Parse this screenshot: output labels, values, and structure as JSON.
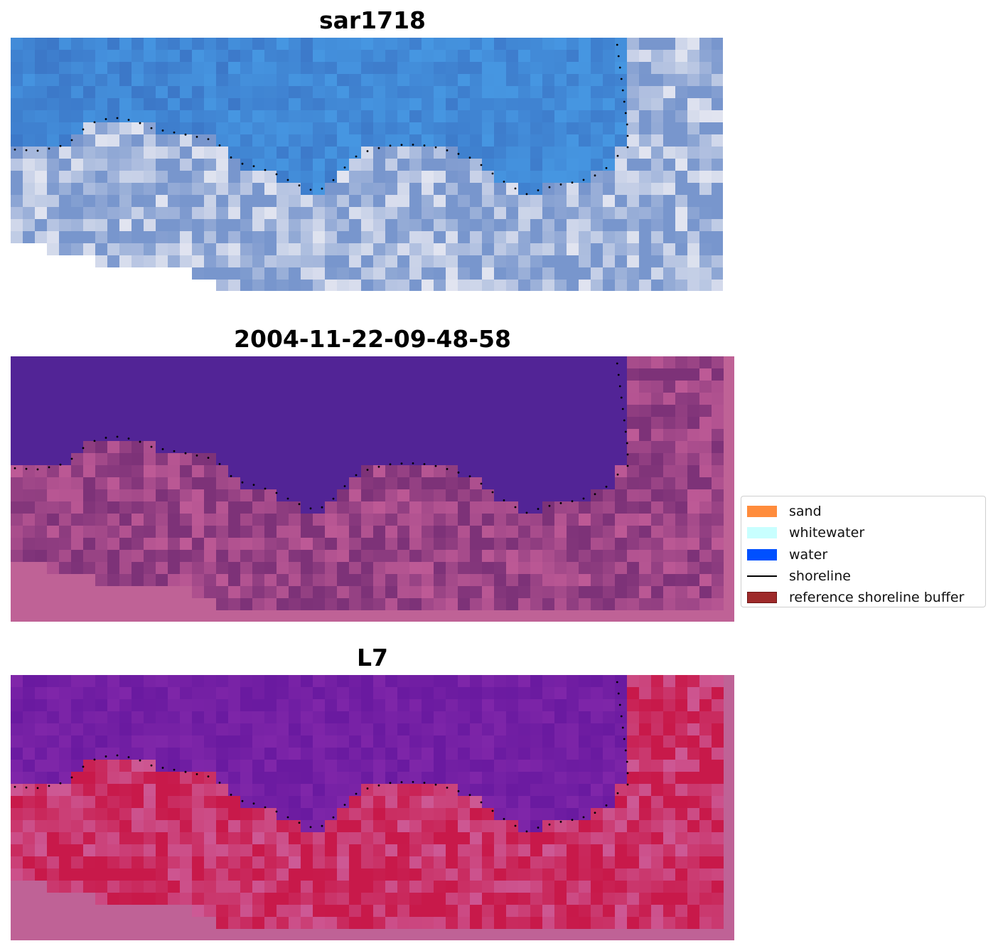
{
  "panels": [
    {
      "title": "sar1718",
      "style": "rgb"
    },
    {
      "title": "2004-11-22-09-48-58",
      "style": "classified"
    },
    {
      "title": "L7",
      "style": "index"
    }
  ],
  "legend": {
    "items": [
      {
        "label": "sand",
        "kind": "patch",
        "color": "#ff8c3c"
      },
      {
        "label": "whitewater",
        "kind": "patch",
        "color": "#c8ffff"
      },
      {
        "label": "water",
        "kind": "patch",
        "color": "#0050ff"
      },
      {
        "label": "shoreline",
        "kind": "line",
        "color": "#000000"
      },
      {
        "label": "reference shoreline buffer",
        "kind": "patch",
        "color": "#9e2a2a",
        "edge": "#6e1414"
      }
    ]
  },
  "colors": {
    "classified_water": "#522496",
    "nodata_magenta": "#bf6296",
    "rgb_blue": "#3c78c8",
    "index_purple": "#6a1aa0",
    "index_red": "#c8194a"
  }
}
